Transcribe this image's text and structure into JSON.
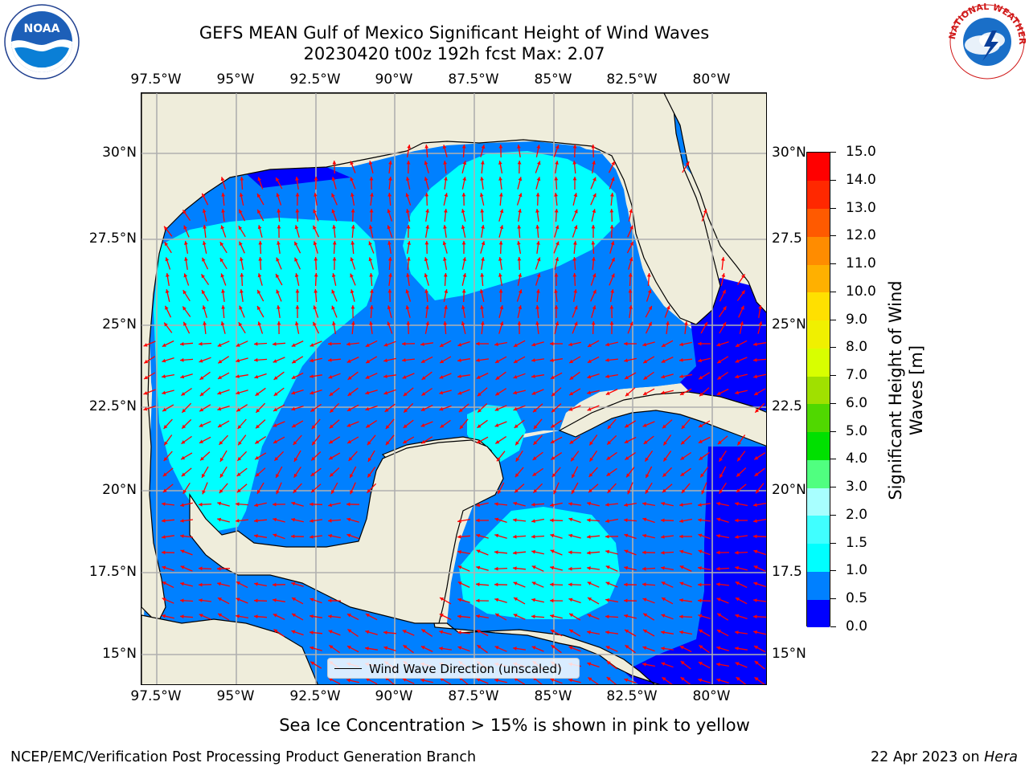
{
  "title_line1": "GEFS MEAN Gulf of Mexico Significant Height of Wind Waves",
  "title_line2": "20230420 t00z 192h fcst   Max: 2.07",
  "x_ticks": [
    "97.5°W",
    "95°W",
    "92.5°W",
    "90°W",
    "87.5°W",
    "85°W",
    "82.5°W",
    "80°W"
  ],
  "y_ticks_left": [
    "30°N",
    "27.5°N",
    "25°N",
    "22.5°N",
    "20°N",
    "17.5°N",
    "15°N"
  ],
  "y_ticks_right": [
    "30°N",
    "27.5",
    "25°N",
    "22.5",
    "20°N",
    "17.5",
    "15°N"
  ],
  "legend_label": "Wind Wave Direction (unscaled)",
  "colorbar": {
    "label": "Significant Height of Wind Waves [m]",
    "ticks": [
      "0.0",
      "0.5",
      "1.0",
      "1.5",
      "2.0",
      "3.0",
      "4.0",
      "5.0",
      "6.0",
      "7.0",
      "8.0",
      "9.0",
      "10.0",
      "11.0",
      "12.0",
      "13.0",
      "14.0",
      "15.0"
    ],
    "colors": [
      "#0000ff",
      "#0080ff",
      "#00ffff",
      "#40ffff",
      "#a8ffff",
      "#50ff80",
      "#00e000",
      "#50d800",
      "#a0e000",
      "#d8ff00",
      "#f0f000",
      "#ffe000",
      "#ffb000",
      "#ff8c00",
      "#ff5a00",
      "#ff2800",
      "#ff0000"
    ]
  },
  "colors": {
    "land": "#efeddb",
    "water_low": "#0000ff",
    "water_mid": "#0080ff",
    "water_high": "#00ffff",
    "arrow": "#ff0000",
    "grid": "#b0b0b0"
  },
  "sea_ice_note": "Sea Ice Concentration > 15% is shown in pink to yellow",
  "credit": "NCEP/EMC/Verification Post Processing Product Generation Branch",
  "date_text": "22 Apr 2023 on ",
  "date_host": "Hera",
  "noaa_logo_text": "NOAA",
  "nws_logo_text": "NATIONAL WEATHER SERVICE"
}
